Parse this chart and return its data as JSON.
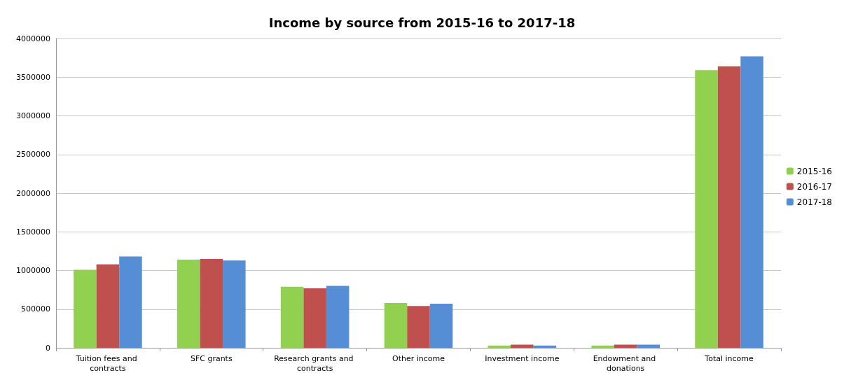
{
  "chart_data": {
    "type": "bar",
    "title": "Income by source from 2015-16 to 2017-18",
    "categories": [
      "Tuition fees and contracts",
      "SFC grants",
      "Research grants and contracts",
      "Other income",
      "Investment income",
      "Endowment and donations",
      "Total income"
    ],
    "series": [
      {
        "name": "2015-16",
        "color": "#92d050",
        "values": [
          1010000,
          1140000,
          790000,
          580000,
          30000,
          30000,
          3590000
        ]
      },
      {
        "name": "2016-17",
        "color": "#c0504d",
        "values": [
          1080000,
          1150000,
          770000,
          540000,
          40000,
          40000,
          3640000
        ]
      },
      {
        "name": "2017-18",
        "color": "#558ed5",
        "values": [
          1180000,
          1130000,
          800000,
          570000,
          30000,
          40000,
          3770000
        ]
      }
    ],
    "ylim": [
      0,
      4000000
    ],
    "yticks": [
      0,
      500000,
      1000000,
      1500000,
      2000000,
      2500000,
      3000000,
      3500000,
      4000000
    ],
    "grid": "y",
    "legend": "right"
  }
}
